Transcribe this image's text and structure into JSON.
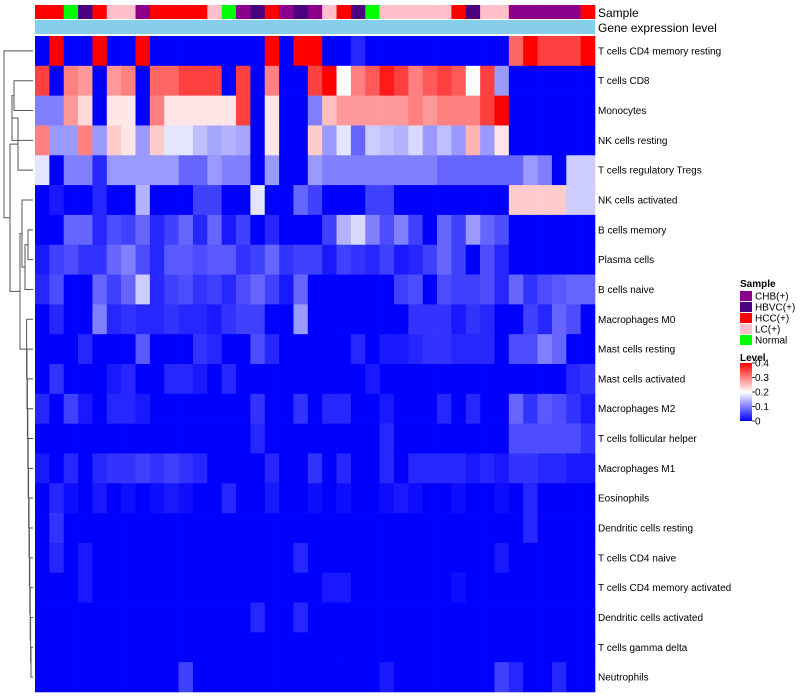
{
  "chart_data": {
    "type": "heatmap",
    "annotation_labels": [
      "Sample",
      "Gene expression level"
    ],
    "rows": [
      "T cells CD4 memory resting",
      "T cells CD8",
      "Monocytes",
      "NK cells resting",
      "T cells regulatory  Tregs",
      "NK cells activated",
      "B cells memory",
      "Plasma cells",
      "B cells naive",
      "Macrophages M0",
      "Mast cells resting",
      "Mast cells activated",
      "Macrophages M2",
      "T cells follicular helper",
      "Macrophages M1",
      "Eosinophils",
      "Dendritic cells resting",
      "T cells CD4 naive",
      "T cells CD4 memory activated",
      "Dendritic cells activated",
      "T cells gamma delta",
      "Neutrophils"
    ],
    "sample_groups": [
      "HCC",
      "HCC",
      "Normal",
      "HBVC",
      "HCC",
      "LC",
      "LC",
      "CHB",
      "HCC",
      "HCC",
      "HCC",
      "HCC",
      "LC",
      "Normal",
      "CHB",
      "HBVC",
      "HCC",
      "CHB",
      "HBVC",
      "CHB",
      "LC",
      "HCC",
      "HBVC",
      "Normal",
      "LC",
      "LC",
      "LC",
      "LC",
      "LC",
      "HCC",
      "HBVC",
      "LC",
      "LC",
      "CHB",
      "CHB",
      "CHB",
      "CHB",
      "CHB",
      "HCC"
    ],
    "values": [
      [
        0.0,
        0.4,
        0.0,
        0.0,
        0.4,
        0.0,
        0.0,
        0.4,
        0.0,
        0.0,
        0.0,
        0.0,
        0.0,
        0.0,
        0.0,
        0.0,
        0.4,
        0.0,
        0.4,
        0.4,
        0.0,
        0.0,
        0.03,
        0.0,
        0.0,
        0.0,
        0.0,
        0.0,
        0.0,
        0.0,
        0.0,
        0.0,
        0.0,
        0.32,
        0.4,
        0.35,
        0.35,
        0.35,
        0.4
      ],
      [
        0.35,
        0.0,
        0.3,
        0.28,
        0.0,
        0.28,
        0.3,
        0.0,
        0.32,
        0.32,
        0.35,
        0.35,
        0.35,
        0.0,
        0.35,
        0.0,
        0.3,
        0.0,
        0.0,
        0.35,
        0.4,
        0.2,
        0.3,
        0.33,
        0.38,
        0.35,
        0.3,
        0.33,
        0.35,
        0.33,
        0.2,
        0.35,
        0.12,
        0.0,
        0.0,
        0.0,
        0.0,
        0.0,
        0.0
      ],
      [
        0.1,
        0.1,
        0.28,
        0.23,
        0.0,
        0.22,
        0.22,
        0.0,
        0.3,
        0.22,
        0.22,
        0.22,
        0.22,
        0.22,
        0.35,
        0.0,
        0.22,
        0.0,
        0.0,
        0.1,
        0.25,
        0.28,
        0.28,
        0.28,
        0.28,
        0.28,
        0.3,
        0.28,
        0.3,
        0.3,
        0.3,
        0.35,
        0.4,
        0.0,
        0.0,
        0.0,
        0.0,
        0.0,
        0.0
      ],
      [
        0.3,
        0.12,
        0.12,
        0.3,
        0.12,
        0.24,
        0.22,
        0.12,
        0.24,
        0.18,
        0.18,
        0.15,
        0.13,
        0.14,
        0.13,
        0.0,
        0.22,
        0.0,
        0.0,
        0.24,
        0.12,
        0.18,
        0.08,
        0.16,
        0.15,
        0.14,
        0.17,
        0.12,
        0.15,
        0.12,
        0.26,
        0.12,
        0.22,
        0.0,
        0.0,
        0.0,
        0.0,
        0.0,
        0.0
      ],
      [
        0.18,
        0.0,
        0.1,
        0.1,
        0.03,
        0.12,
        0.12,
        0.12,
        0.12,
        0.12,
        0.08,
        0.08,
        0.12,
        0.1,
        0.1,
        0.0,
        0.12,
        0.0,
        0.0,
        0.12,
        0.1,
        0.1,
        0.1,
        0.1,
        0.1,
        0.1,
        0.1,
        0.1,
        0.08,
        0.08,
        0.08,
        0.08,
        0.08,
        0.08,
        0.12,
        0.1,
        0.0,
        0.16,
        0.16
      ],
      [
        0.0,
        0.02,
        0.0,
        0.0,
        0.03,
        0.0,
        0.0,
        0.14,
        0.0,
        0.0,
        0.0,
        0.05,
        0.05,
        0.0,
        0.0,
        0.18,
        0.0,
        0.0,
        0.08,
        0.05,
        0.0,
        0.0,
        0.0,
        0.05,
        0.05,
        0.0,
        0.0,
        0.0,
        0.0,
        0.0,
        0.0,
        0.0,
        0.0,
        0.24,
        0.24,
        0.24,
        0.24,
        0.16,
        0.16
      ],
      [
        0.0,
        0.0,
        0.08,
        0.08,
        0.03,
        0.06,
        0.05,
        0.08,
        0.03,
        0.05,
        0.08,
        0.03,
        0.08,
        0.02,
        0.05,
        0.0,
        0.03,
        0.0,
        0.0,
        0.0,
        0.05,
        0.14,
        0.17,
        0.1,
        0.06,
        0.1,
        0.05,
        0.0,
        0.08,
        0.05,
        0.12,
        0.08,
        0.06,
        0.0,
        0.0,
        0.0,
        0.0,
        0.0,
        0.0
      ],
      [
        0.02,
        0.05,
        0.06,
        0.04,
        0.04,
        0.08,
        0.1,
        0.06,
        0.03,
        0.07,
        0.07,
        0.06,
        0.07,
        0.07,
        0.04,
        0.05,
        0.08,
        0.04,
        0.05,
        0.05,
        0.02,
        0.05,
        0.04,
        0.03,
        0.05,
        0.02,
        0.03,
        0.05,
        0.08,
        0.05,
        0.0,
        0.06,
        0.03,
        0.0,
        0.0,
        0.0,
        0.0,
        0.0,
        0.0
      ],
      [
        0.03,
        0.06,
        0.0,
        0.0,
        0.08,
        0.05,
        0.08,
        0.16,
        0.03,
        0.05,
        0.06,
        0.04,
        0.05,
        0.03,
        0.06,
        0.08,
        0.05,
        0.02,
        0.08,
        0.0,
        0.0,
        0.0,
        0.0,
        0.0,
        0.0,
        0.05,
        0.06,
        0.0,
        0.06,
        0.05,
        0.05,
        0.06,
        0.03,
        0.08,
        0.04,
        0.06,
        0.07,
        0.08,
        0.08
      ],
      [
        0.0,
        0.03,
        0.0,
        0.0,
        0.1,
        0.03,
        0.04,
        0.03,
        0.03,
        0.04,
        0.03,
        0.03,
        0.02,
        0.04,
        0.05,
        0.05,
        0.0,
        0.0,
        0.12,
        0.0,
        0.0,
        0.0,
        0.0,
        0.0,
        0.0,
        0.0,
        0.04,
        0.04,
        0.04,
        0.02,
        0.04,
        0.03,
        0.0,
        0.0,
        0.05,
        0.03,
        0.08,
        0.06,
        0.0
      ],
      [
        0.0,
        0.0,
        0.0,
        0.03,
        0.0,
        0.0,
        0.0,
        0.07,
        0.0,
        0.0,
        0.0,
        0.04,
        0.03,
        0.0,
        0.0,
        0.06,
        0.03,
        0.0,
        0.0,
        0.0,
        0.0,
        0.0,
        0.03,
        0.0,
        0.02,
        0.02,
        0.03,
        0.04,
        0.04,
        0.03,
        0.03,
        0.03,
        0.0,
        0.06,
        0.06,
        0.1,
        0.08,
        0.0,
        0.0
      ],
      [
        0.0,
        0.04,
        0.0,
        0.0,
        0.0,
        0.02,
        0.03,
        0.0,
        0.0,
        0.03,
        0.03,
        0.02,
        0.0,
        0.03,
        0.0,
        0.0,
        0.0,
        0.0,
        0.0,
        0.0,
        0.0,
        0.0,
        0.0,
        0.02,
        0.0,
        0.0,
        0.0,
        0.0,
        0.0,
        0.0,
        0.0,
        0.0,
        0.0,
        0.0,
        0.0,
        0.0,
        0.0,
        0.03,
        0.04
      ],
      [
        0.03,
        0.0,
        0.05,
        0.02,
        0.0,
        0.03,
        0.03,
        0.02,
        0.0,
        0.0,
        0.0,
        0.0,
        0.0,
        0.0,
        0.0,
        0.04,
        0.0,
        0.0,
        0.04,
        0.0,
        0.03,
        0.03,
        0.0,
        0.0,
        0.02,
        0.0,
        0.0,
        0.0,
        0.03,
        0.0,
        0.03,
        0.0,
        0.0,
        0.08,
        0.04,
        0.07,
        0.06,
        0.04,
        0.02
      ],
      [
        0.0,
        0.0,
        0.0,
        0.0,
        0.0,
        0.0,
        0.0,
        0.0,
        0.0,
        0.0,
        0.0,
        0.0,
        0.0,
        0.0,
        0.0,
        0.03,
        0.0,
        0.0,
        0.0,
        0.0,
        0.0,
        0.0,
        0.0,
        0.0,
        0.03,
        0.0,
        0.0,
        0.0,
        0.0,
        0.0,
        0.0,
        0.0,
        0.0,
        0.06,
        0.06,
        0.06,
        0.06,
        0.06,
        0.04
      ],
      [
        0.02,
        0.0,
        0.03,
        0.0,
        0.03,
        0.04,
        0.04,
        0.05,
        0.04,
        0.05,
        0.04,
        0.03,
        0.0,
        0.0,
        0.0,
        0.0,
        0.03,
        0.0,
        0.0,
        0.04,
        0.0,
        0.03,
        0.0,
        0.0,
        0.03,
        0.0,
        0.03,
        0.03,
        0.03,
        0.03,
        0.02,
        0.03,
        0.02,
        0.04,
        0.04,
        0.03,
        0.03,
        0.02,
        0.02
      ],
      [
        0.0,
        0.03,
        0.01,
        0.0,
        0.02,
        0.0,
        0.01,
        0.0,
        0.01,
        0.02,
        0.01,
        0.0,
        0.0,
        0.03,
        0.0,
        0.0,
        0.02,
        0.0,
        0.0,
        0.01,
        0.0,
        0.01,
        0.0,
        0.0,
        0.01,
        0.02,
        0.01,
        0.0,
        0.0,
        0.01,
        0.0,
        0.0,
        0.01,
        0.0,
        0.03,
        0.0,
        0.0,
        0.0,
        0.0
      ],
      [
        0.0,
        0.04,
        0.0,
        0.0,
        0.0,
        0.0,
        0.0,
        0.0,
        0.0,
        0.0,
        0.0,
        0.0,
        0.0,
        0.0,
        0.0,
        0.0,
        0.0,
        0.0,
        0.0,
        0.0,
        0.0,
        0.0,
        0.0,
        0.0,
        0.0,
        0.0,
        0.0,
        0.0,
        0.0,
        0.0,
        0.0,
        0.0,
        0.0,
        0.0,
        0.03,
        0.0,
        0.0,
        0.0,
        0.0
      ],
      [
        0.0,
        0.03,
        0.0,
        0.02,
        0.0,
        0.0,
        0.0,
        0.0,
        0.0,
        0.0,
        0.0,
        0.0,
        0.0,
        0.0,
        0.0,
        0.0,
        0.0,
        0.0,
        0.03,
        0.0,
        0.0,
        0.0,
        0.0,
        0.0,
        0.0,
        0.0,
        0.0,
        0.0,
        0.0,
        0.0,
        0.0,
        0.0,
        0.02,
        0.0,
        0.0,
        0.0,
        0.0,
        0.0,
        0.0
      ],
      [
        0.0,
        0.0,
        0.0,
        0.02,
        0.0,
        0.0,
        0.0,
        0.0,
        0.0,
        0.0,
        0.0,
        0.0,
        0.0,
        0.0,
        0.0,
        0.0,
        0.0,
        0.0,
        0.0,
        0.0,
        0.02,
        0.02,
        0.0,
        0.0,
        0.0,
        0.0,
        0.0,
        0.0,
        0.0,
        0.01,
        0.0,
        0.0,
        0.0,
        0.0,
        0.0,
        0.0,
        0.0,
        0.0,
        0.0
      ],
      [
        0.0,
        0.0,
        0.0,
        0.0,
        0.0,
        0.0,
        0.0,
        0.0,
        0.0,
        0.0,
        0.0,
        0.0,
        0.0,
        0.0,
        0.0,
        0.03,
        0.0,
        0.0,
        0.03,
        0.0,
        0.0,
        0.0,
        0.0,
        0.0,
        0.0,
        0.0,
        0.0,
        0.0,
        0.0,
        0.0,
        0.0,
        0.0,
        0.0,
        0.0,
        0.0,
        0.0,
        0.0,
        0.0,
        0.0
      ],
      [
        0.0,
        0.0,
        0.0,
        0.0,
        0.0,
        0.0,
        0.0,
        0.0,
        0.0,
        0.0,
        0.0,
        0.0,
        0.0,
        0.0,
        0.0,
        0.0,
        0.0,
        0.0,
        0.0,
        0.0,
        0.0,
        0.0,
        0.0,
        0.0,
        0.0,
        0.0,
        0.0,
        0.0,
        0.0,
        0.0,
        0.0,
        0.0,
        0.0,
        0.0,
        0.0,
        0.0,
        0.0,
        0.0,
        0.0
      ],
      [
        0.0,
        0.0,
        0.0,
        0.0,
        0.0,
        0.0,
        0.0,
        0.0,
        0.0,
        0.0,
        0.05,
        0.0,
        0.0,
        0.0,
        0.0,
        0.0,
        0.0,
        0.0,
        0.0,
        0.0,
        0.0,
        0.0,
        0.0,
        0.0,
        0.02,
        0.0,
        0.0,
        0.0,
        0.0,
        0.0,
        0.0,
        0.0,
        0.05,
        0.03,
        0.0,
        0.0,
        0.03,
        0.0,
        0.0
      ]
    ],
    "sample_legend": {
      "title": "Sample",
      "items": [
        {
          "name": "CHB(+)",
          "key": "CHB",
          "color": "#8B008B"
        },
        {
          "name": "HBVC(+)",
          "key": "HBVC",
          "color": "#4B0082"
        },
        {
          "name": "HCC(+)",
          "key": "HCC",
          "color": "#FF0000"
        },
        {
          "name": "LC(+)",
          "key": "LC",
          "color": "#FFC0CB"
        },
        {
          "name": "Normal",
          "key": "Normal",
          "color": "#00FF00"
        }
      ]
    },
    "level_legend": {
      "title": "Level",
      "ticks": [
        "0.4",
        "0.3",
        "0.2",
        "0.1",
        "0"
      ],
      "tick_values": [
        0.4,
        0.3,
        0.2,
        0.1,
        0
      ],
      "range": [
        0,
        0.4
      ]
    },
    "color_scale": {
      "low": "#0000FF",
      "mid": "#FFFFFF",
      "high": "#FF0000",
      "mid_value": 0.2
    },
    "expression_bar_color": "#87CEEB"
  }
}
